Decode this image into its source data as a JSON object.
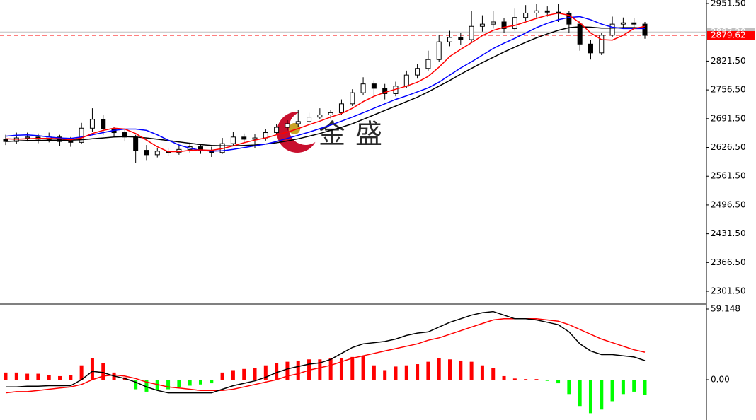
{
  "chart_data": [
    {
      "type": "candlestick",
      "open": [
        2645,
        2640,
        2648,
        2650,
        2645,
        2650,
        2640,
        2638,
        2670,
        2690,
        2668,
        2660,
        2650,
        2620,
        2610,
        2618,
        2615,
        2622,
        2628,
        2620,
        2615,
        2635,
        2650,
        2645,
        2648,
        2660,
        2672,
        2680,
        2685,
        2695,
        2700,
        2705,
        2725,
        2750,
        2770,
        2760,
        2748,
        2765,
        2790,
        2805,
        2825,
        2865,
        2875,
        2870,
        2900,
        2905,
        2910,
        2895,
        2920,
        2930,
        2935,
        2932,
        2930,
        2905,
        2860,
        2840,
        2880,
        2905,
        2908,
        2905
      ],
      "high": [
        2655,
        2660,
        2660,
        2658,
        2660,
        2655,
        2650,
        2682,
        2715,
        2700,
        2672,
        2668,
        2655,
        2632,
        2625,
        2626,
        2632,
        2635,
        2632,
        2628,
        2648,
        2662,
        2658,
        2656,
        2668,
        2680,
        2688,
        2712,
        2705,
        2715,
        2712,
        2735,
        2758,
        2785,
        2778,
        2770,
        2775,
        2800,
        2815,
        2845,
        2880,
        2890,
        2885,
        2935,
        2925,
        2935,
        2918,
        2940,
        2948,
        2950,
        2945,
        2950,
        2935,
        2912,
        2870,
        2885,
        2922,
        2920,
        2918,
        2910
      ],
      "low": [
        2632,
        2635,
        2640,
        2636,
        2638,
        2630,
        2628,
        2635,
        2662,
        2655,
        2650,
        2640,
        2592,
        2598,
        2604,
        2608,
        2610,
        2615,
        2612,
        2605,
        2612,
        2630,
        2636,
        2625,
        2642,
        2655,
        2665,
        2672,
        2678,
        2690,
        2692,
        2700,
        2720,
        2745,
        2740,
        2735,
        2742,
        2760,
        2782,
        2800,
        2820,
        2855,
        2858,
        2865,
        2888,
        2895,
        2885,
        2890,
        2912,
        2920,
        2922,
        2910,
        2885,
        2845,
        2825,
        2835,
        2875,
        2895,
        2895,
        2872
      ],
      "close": [
        2640,
        2648,
        2650,
        2645,
        2650,
        2640,
        2638,
        2670,
        2690,
        2668,
        2660,
        2650,
        2620,
        2610,
        2618,
        2615,
        2622,
        2628,
        2620,
        2615,
        2635,
        2650,
        2645,
        2648,
        2660,
        2672,
        2680,
        2685,
        2695,
        2700,
        2705,
        2725,
        2750,
        2770,
        2760,
        2748,
        2765,
        2790,
        2805,
        2825,
        2865,
        2875,
        2870,
        2900,
        2905,
        2910,
        2895,
        2920,
        2930,
        2935,
        2932,
        2930,
        2905,
        2860,
        2840,
        2880,
        2905,
        2908,
        2905,
        2879.62
      ],
      "up_color": "#ffffff",
      "down_color": "#000000",
      "moving_averages": [
        {
          "color": "#000000",
          "values": [
            2640,
            2641,
            2642,
            2642,
            2643,
            2643,
            2643,
            2644,
            2646,
            2648,
            2650,
            2651,
            2650,
            2648,
            2645,
            2642,
            2639,
            2636,
            2633,
            2631,
            2630,
            2630,
            2631,
            2632,
            2634,
            2637,
            2641,
            2646,
            2652,
            2658,
            2665,
            2672,
            2680,
            2690,
            2700,
            2710,
            2720,
            2730,
            2740,
            2752,
            2765,
            2778,
            2792,
            2805,
            2818,
            2830,
            2842,
            2853,
            2864,
            2874,
            2883,
            2891,
            2897,
            2899,
            2898,
            2896,
            2896,
            2897,
            2897,
            2896
          ]
        },
        {
          "color": "#0000ff",
          "values": [
            2652,
            2654,
            2655,
            2653,
            2650,
            2648,
            2647,
            2650,
            2655,
            2660,
            2665,
            2668,
            2668,
            2665,
            2655,
            2643,
            2632,
            2625,
            2620,
            2618,
            2619,
            2622,
            2626,
            2630,
            2634,
            2640,
            2647,
            2654,
            2661,
            2669,
            2677,
            2686,
            2695,
            2705,
            2715,
            2725,
            2735,
            2743,
            2752,
            2761,
            2774,
            2790,
            2806,
            2820,
            2835,
            2850,
            2862,
            2873,
            2885,
            2897,
            2907,
            2915,
            2920,
            2922,
            2915,
            2905,
            2898,
            2895,
            2895,
            2895
          ]
        },
        {
          "color": "#ff0000",
          "values": [
            2646,
            2645,
            2646,
            2647,
            2647,
            2646,
            2644,
            2648,
            2658,
            2665,
            2670,
            2668,
            2658,
            2643,
            2628,
            2617,
            2617,
            2620,
            2621,
            2620,
            2624,
            2630,
            2637,
            2643,
            2648,
            2655,
            2661,
            2669,
            2678,
            2686,
            2695,
            2703,
            2715,
            2730,
            2742,
            2751,
            2758,
            2765,
            2774,
            2787,
            2808,
            2832,
            2848,
            2863,
            2879,
            2891,
            2898,
            2902,
            2910,
            2918,
            2925,
            2930,
            2925,
            2908,
            2885,
            2870,
            2869,
            2880,
            2895,
            2900
          ]
        }
      ],
      "price_lines": [
        {
          "value": 2887.2,
          "label": "2887.20",
          "color": "#c0c0c0"
        },
        {
          "value": 2879.62,
          "label": "2879.62",
          "color": "#ff0000"
        }
      ],
      "ylim": [
        2276,
        2959.5
      ],
      "yticks": [
        {
          "value": 2951.5,
          "label": "2951.50"
        },
        {
          "value": 2821.5,
          "label": "2821.50"
        },
        {
          "value": 2756.5,
          "label": "2756.50"
        },
        {
          "value": 2691.5,
          "label": "2691.50"
        },
        {
          "value": 2626.5,
          "label": "2626.50"
        },
        {
          "value": 2561.5,
          "label": "2561.50"
        },
        {
          "value": 2496.5,
          "label": "2496.50"
        },
        {
          "value": 2431.5,
          "label": "2431.50"
        },
        {
          "value": 2366.5,
          "label": "2366.50"
        },
        {
          "value": 2301.5,
          "label": "2301.50"
        }
      ],
      "watermark": "金盛"
    },
    {
      "type": "macd",
      "histogram": [
        6,
        6,
        5,
        5,
        4,
        3,
        4,
        12,
        18,
        14,
        6,
        2,
        -8,
        -10,
        -9,
        -8,
        -6,
        -5,
        -4,
        -3,
        6,
        8,
        9,
        10,
        12,
        14,
        15,
        16,
        17,
        17,
        18,
        18,
        19,
        20,
        12,
        8,
        11,
        12,
        13,
        15,
        18,
        17,
        16,
        15,
        12,
        10,
        3,
        1,
        0.5,
        0.5,
        -1,
        -3,
        -12,
        -22,
        -28,
        -25,
        -18,
        -12,
        -10,
        -13
      ],
      "up_color": "#ff0000",
      "down_color": "#00ff00",
      "macd": {
        "color": "#000000",
        "values": [
          -6,
          -6,
          -5.5,
          -5.5,
          -5,
          -5,
          -5,
          0,
          7,
          6,
          3,
          1,
          -2,
          -6,
          -9,
          -11,
          -11,
          -11,
          -11,
          -11,
          -8,
          -5,
          -3,
          -1,
          2,
          6,
          9,
          11,
          13,
          14,
          17,
          22,
          27,
          30,
          31,
          32,
          34,
          37,
          39,
          40,
          44,
          48,
          51,
          54,
          56,
          57,
          54,
          51,
          51,
          50,
          48,
          46,
          40,
          30,
          24,
          21,
          21,
          20,
          19,
          16
        ]
      },
      "signal": {
        "color": "#ff0000",
        "values": [
          -11,
          -10,
          -10,
          -9,
          -8,
          -7,
          -6,
          -4,
          0,
          3,
          4,
          3,
          1,
          -2,
          -4,
          -6,
          -7,
          -8,
          -9,
          -9,
          -9,
          -8,
          -6,
          -4,
          -2,
          0,
          3,
          5,
          8,
          10,
          12,
          15,
          18,
          20,
          22,
          24,
          26,
          28,
          30,
          33,
          35,
          38,
          41,
          44,
          47,
          50,
          51,
          51,
          51,
          51,
          50,
          49,
          46,
          42,
          38,
          34,
          31,
          28,
          25,
          23
        ]
      },
      "ylim": [
        -33.7,
        62.1
      ],
      "yticks": [
        {
          "value": 59.148,
          "label": "59.148"
        },
        {
          "value": 0,
          "label": "0.00"
        }
      ]
    }
  ]
}
